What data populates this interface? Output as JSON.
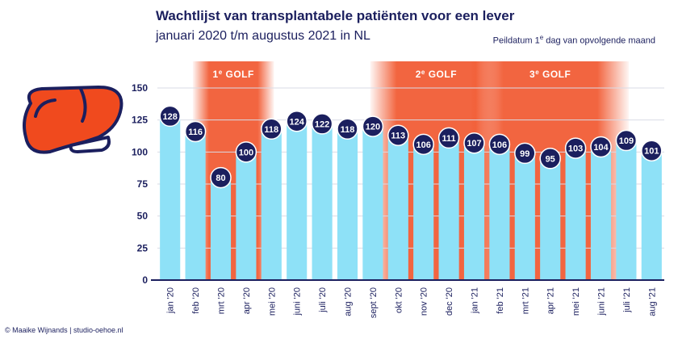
{
  "header": {
    "title": "Wachtlijst van transplantabele patiënten voor een lever",
    "subtitle": "januari 2020 t/m augustus 2021 in NL",
    "note_pre": "Peildatum 1",
    "note_sup": "e",
    "note_post": " dag van opvolgende maand"
  },
  "credit": "© Maaike Wijnands | studio-oehoe.nl",
  "icons": {
    "logo": "liver-icon"
  },
  "colors": {
    "bar": "#8ee1f7",
    "navy": "#1b1f5e",
    "wave": "#f04a1e",
    "wave_light": "#fde3d8"
  },
  "chart_data": {
    "type": "bar",
    "categories": [
      "jan '20",
      "feb '20",
      "mrt '20",
      "apr '20",
      "mei '20",
      "juni '20",
      "juli '20",
      "aug '20",
      "sept '20",
      "okt '20",
      "nov '20",
      "dec '20",
      "jan '21",
      "feb '21",
      "mrt '21",
      "apr '21",
      "mei '21",
      "juni '21",
      "juli '21",
      "aug '21"
    ],
    "values": [
      128,
      116,
      80,
      100,
      118,
      124,
      122,
      118,
      120,
      113,
      106,
      111,
      107,
      106,
      99,
      95,
      103,
      104,
      109,
      101
    ],
    "ylim": [
      0,
      150
    ],
    "yticks": [
      0,
      25,
      50,
      75,
      100,
      125,
      150
    ],
    "grid": true,
    "bands": [
      {
        "label_pre": "1",
        "label_sup": "e",
        "label_post": " GOLF",
        "start": 2,
        "end": 3
      },
      {
        "label_pre": "2",
        "label_sup": "e",
        "label_post": " GOLF",
        "start": 9,
        "end": 12
      },
      {
        "label_pre": "3",
        "label_sup": "e",
        "label_post": " GOLF",
        "start": 13,
        "end": 17
      }
    ]
  }
}
